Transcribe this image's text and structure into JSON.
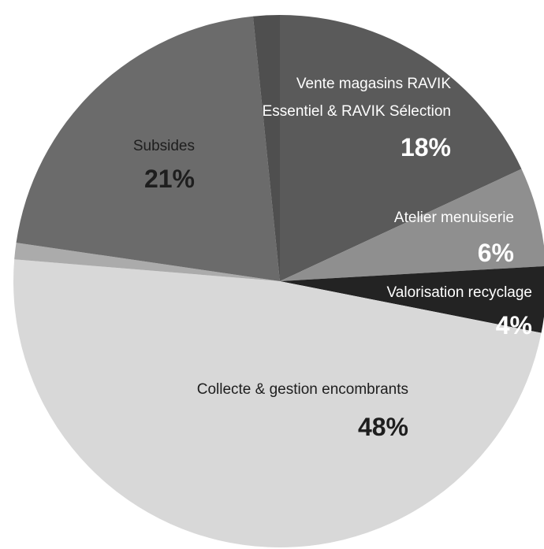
{
  "chart_data": {
    "type": "pie",
    "slices": [
      {
        "name": "Vente magasins RAVIK",
        "name2": "Essentiel & RAVIK Sélection",
        "label": "18%",
        "value": 18,
        "color": "#5a5a5a"
      },
      {
        "name": "Atelier menuiserie",
        "label": "6%",
        "value": 6,
        "color": "#8f8f8f"
      },
      {
        "name": "Valorisation recyclage",
        "label": "4%",
        "value": 4,
        "color": "#232323"
      },
      {
        "name": "Collecte & gestion encombrants",
        "label": "48%",
        "value": 48,
        "color": "#d8d8d8"
      },
      {
        "name": "",
        "label": "",
        "value": 1,
        "color": "#ababab"
      },
      {
        "name": "Subsides",
        "label": "21%",
        "value": 21,
        "color": "#6b6b6b"
      },
      {
        "name": "",
        "label": "",
        "value": 1.6,
        "color": "#4f4f4f"
      }
    ],
    "start_angle_deg": 0,
    "direction": "clockwise",
    "legend": "none"
  }
}
